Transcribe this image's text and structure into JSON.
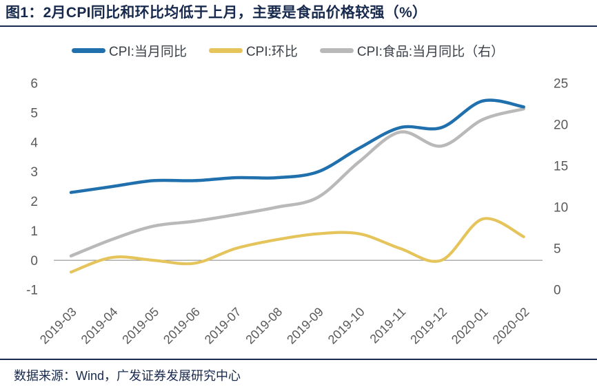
{
  "title": "图1：2月CPI同比和环比均低于上月，主要是食品价格较强（%）",
  "footer": {
    "source": "数据来源：Wind，广发证券发展研究中心"
  },
  "colors": {
    "accent_navy": "#17294d",
    "line_blue": "#2070ae",
    "line_yellow": "#e5c45c",
    "line_gray": "#b9b9b9",
    "axis_text": "#595959",
    "zero_line": "#858585"
  },
  "chart_data": {
    "type": "line",
    "title": "2月CPI同比和环比均低于上月，主要是食品价格较强（%）",
    "categories": [
      "2019-03",
      "2019-04",
      "2019-05",
      "2019-06",
      "2019-07",
      "2019-08",
      "2019-09",
      "2019-10",
      "2019-11",
      "2019-12",
      "2020-01",
      "2020-02"
    ],
    "series": [
      {
        "name": "CPI:当月同比",
        "axis": "left",
        "color_key": "line_blue",
        "stroke_width": 4.5,
        "values": [
          2.3,
          2.5,
          2.7,
          2.7,
          2.8,
          2.8,
          3.0,
          3.8,
          4.5,
          4.5,
          5.4,
          5.2
        ]
      },
      {
        "name": "CPI:环比",
        "axis": "left",
        "color_key": "line_yellow",
        "stroke_width": 4.2,
        "values": [
          -0.4,
          0.1,
          0.0,
          -0.1,
          0.4,
          0.7,
          0.9,
          0.9,
          0.4,
          0.0,
          1.4,
          0.8
        ]
      },
      {
        "name": "CPI:食品:当月同比（右）",
        "axis": "right",
        "color_key": "line_gray",
        "stroke_width": 4.5,
        "values": [
          4.1,
          6.1,
          7.7,
          8.3,
          9.1,
          10.0,
          11.2,
          15.5,
          19.1,
          17.4,
          20.6,
          21.9
        ]
      }
    ],
    "left_axis": {
      "min": -1,
      "max": 6,
      "ticks": [
        6,
        5,
        4,
        3,
        2,
        1,
        0,
        -1
      ]
    },
    "right_axis": {
      "min": 0,
      "max": 25,
      "ticks": [
        25,
        20,
        15,
        10,
        5,
        0
      ]
    },
    "gridlines": "horizontal-zero-only",
    "legend_position": "top",
    "curve": "smooth"
  }
}
